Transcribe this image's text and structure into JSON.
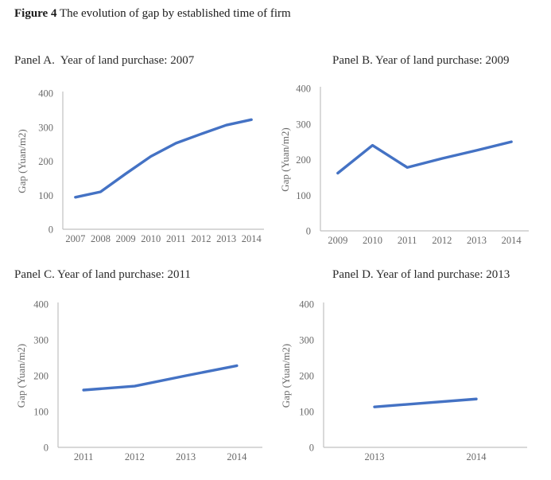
{
  "figure_title": {
    "number": "Figure 4",
    "caption": " The evolution of gap by established time of firm"
  },
  "colors": {
    "line": "#4472C4",
    "axis": "#c0c0c0",
    "tick_text": "#6a6a6a"
  },
  "chart_data": [
    {
      "type": "line",
      "title": "Panel A.  Year of land purchase: 2007",
      "categories": [
        "2007",
        "2008",
        "2009",
        "2010",
        "2011",
        "2012",
        "2013",
        "2014"
      ],
      "values": [
        94,
        110,
        163,
        214,
        253,
        280,
        306,
        322
      ],
      "xlabel": "",
      "ylabel": "Gap (Yuan/m2)",
      "ylim": [
        0,
        400
      ],
      "yticks": [
        0,
        100,
        200,
        300,
        400
      ],
      "grid": false,
      "legend": "none"
    },
    {
      "type": "line",
      "title": "Panel B. Year of land purchase: 2009",
      "categories": [
        "2009",
        "2010",
        "2011",
        "2012",
        "2013",
        "2014"
      ],
      "values": [
        162,
        240,
        178,
        203,
        226,
        250
      ],
      "xlabel": "",
      "ylabel": "Gap (Yuan/m2)",
      "ylim": [
        0,
        400
      ],
      "yticks": [
        0,
        100,
        200,
        300,
        400
      ],
      "grid": false,
      "legend": "none"
    },
    {
      "type": "line",
      "title": "Panel C. Year of land purchase: 2011",
      "categories": [
        "2011",
        "2012",
        "2013",
        "2014"
      ],
      "values": [
        160,
        171,
        200,
        228
      ],
      "xlabel": "",
      "ylabel": "Gap (Yuan/m2)",
      "ylim": [
        0,
        400
      ],
      "yticks": [
        0,
        100,
        200,
        300,
        400
      ],
      "grid": false,
      "legend": "none"
    },
    {
      "type": "line",
      "title": "Panel D. Year of land purchase: 2013",
      "categories": [
        "2013",
        "2014"
      ],
      "values": [
        113,
        135
      ],
      "xlabel": "",
      "ylabel": "Gap (Yuan/m2)",
      "ylim": [
        0,
        400
      ],
      "yticks": [
        0,
        100,
        200,
        300,
        400
      ],
      "grid": false,
      "legend": "none"
    }
  ]
}
